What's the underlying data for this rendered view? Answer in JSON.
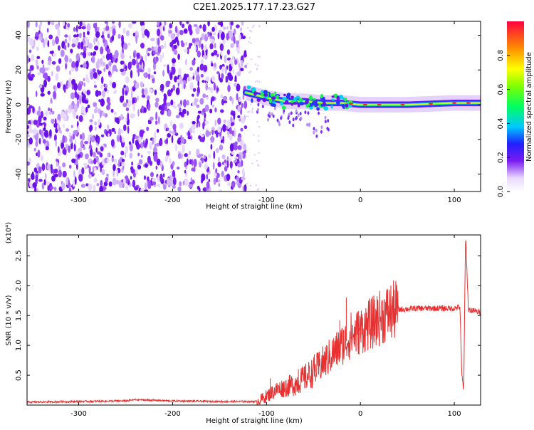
{
  "chart_data": [
    {
      "type": "heatmap",
      "title": "C2E1.2025.177.17.23.G27",
      "xlabel": "Height of straight line (km)",
      "ylabel": "Frequency (Hz)",
      "xlim": [
        -355,
        128
      ],
      "ylim": [
        -50,
        48
      ],
      "xticks": [
        -300,
        -200,
        -100,
        0,
        100
      ],
      "yticks": [
        -40,
        -20,
        0,
        20,
        40
      ],
      "colorbar": {
        "label": "Normalized spectral amplitude",
        "range": [
          0.0,
          1.0
        ],
        "ticks": [
          0.0,
          0.2,
          0.4,
          0.6,
          0.8
        ]
      },
      "noise_region_x": [
        -355,
        -122
      ],
      "signal_track": [
        {
          "x": -122,
          "y": 7
        },
        {
          "x": -100,
          "y": 4
        },
        {
          "x": -80,
          "y": 2
        },
        {
          "x": -60,
          "y": 2
        },
        {
          "x": -40,
          "y": 1
        },
        {
          "x": -20,
          "y": 1
        },
        {
          "x": 0,
          "y": 0
        },
        {
          "x": 50,
          "y": 0
        },
        {
          "x": 100,
          "y": 1
        },
        {
          "x": 128,
          "y": 1
        }
      ]
    },
    {
      "type": "line",
      "xlabel": "Height of straight line (km)",
      "ylabel": "SNR (10 * v/v)",
      "scale_note": "(x10⁴)",
      "xlim": [
        -355,
        128
      ],
      "ylim": [
        0,
        2.85
      ],
      "xticks": [
        -300,
        -200,
        -100,
        0,
        100
      ],
      "yticks": [
        0.5,
        1.0,
        1.5,
        2.0,
        2.5
      ],
      "series": [
        {
          "color": "#e83030",
          "points": [
            {
              "x": -355,
              "y": 0.05
            },
            {
              "x": -300,
              "y": 0.06
            },
            {
              "x": -250,
              "y": 0.07
            },
            {
              "x": -240,
              "y": 0.09
            },
            {
              "x": -200,
              "y": 0.07
            },
            {
              "x": -150,
              "y": 0.06
            },
            {
              "x": -110,
              "y": 0.06
            },
            {
              "x": -100,
              "y": 0.15
            },
            {
              "x": -90,
              "y": 0.25
            },
            {
              "x": -80,
              "y": 0.3
            },
            {
              "x": -70,
              "y": 0.35
            },
            {
              "x": -60,
              "y": 0.45
            },
            {
              "x": -50,
              "y": 0.55
            },
            {
              "x": -40,
              "y": 0.7
            },
            {
              "x": -30,
              "y": 0.85
            },
            {
              "x": -20,
              "y": 1.0
            },
            {
              "x": -10,
              "y": 1.15
            },
            {
              "x": 0,
              "y": 1.25
            },
            {
              "x": 10,
              "y": 1.35
            },
            {
              "x": 20,
              "y": 1.45
            },
            {
              "x": 30,
              "y": 1.55
            },
            {
              "x": 40,
              "y": 1.6
            },
            {
              "x": 60,
              "y": 1.62
            },
            {
              "x": 80,
              "y": 1.62
            },
            {
              "x": 100,
              "y": 1.62
            },
            {
              "x": 106,
              "y": 1.65
            },
            {
              "x": 108,
              "y": 0.5
            },
            {
              "x": 110,
              "y": 0.25
            },
            {
              "x": 112,
              "y": 2.85
            },
            {
              "x": 115,
              "y": 1.6
            },
            {
              "x": 128,
              "y": 1.55
            }
          ],
          "spikes": [
            {
              "x": -96,
              "y": 0.45
            },
            {
              "x": -66,
              "y": 0.6
            },
            {
              "x": -49,
              "y": 0.85
            },
            {
              "x": -36,
              "y": 1.0
            },
            {
              "x": -22,
              "y": 1.42
            },
            {
              "x": -15,
              "y": 1.8
            },
            {
              "x": -10,
              "y": 1.55
            }
          ]
        }
      ]
    }
  ]
}
